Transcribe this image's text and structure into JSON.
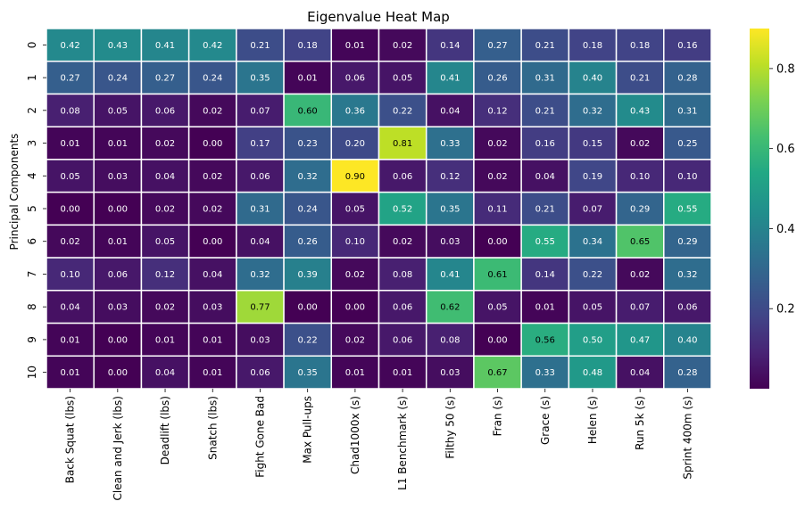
{
  "chart_data": {
    "type": "heatmap",
    "title": "Eigenvalue Heat Map",
    "ylabel": "Principal Components",
    "xlabel": "",
    "rows": [
      "0",
      "1",
      "2",
      "3",
      "4",
      "5",
      "6",
      "7",
      "8",
      "9",
      "10"
    ],
    "columns": [
      "Back Squat (lbs)",
      "Clean and Jerk (lbs)",
      "Deadlift (lbs)",
      "Snatch (lbs)",
      "Fight Gone Bad",
      "Max Pull-ups",
      "Chad1000x (s)",
      "L1 Benchmark (s)",
      "Filthy 50 (s)",
      "Fran (s)",
      "Grace (s)",
      "Helen (s)",
      "Run 5k (s)",
      "Sprint 400m (s)"
    ],
    "values": [
      [
        0.42,
        0.43,
        0.41,
        0.42,
        0.21,
        0.18,
        0.01,
        0.02,
        0.14,
        0.27,
        0.21,
        0.18,
        0.18,
        0.16
      ],
      [
        0.27,
        0.24,
        0.27,
        0.24,
        0.35,
        0.01,
        0.06,
        0.05,
        0.41,
        0.26,
        0.31,
        0.4,
        0.21,
        0.28
      ],
      [
        0.08,
        0.05,
        0.06,
        0.02,
        0.07,
        0.6,
        0.36,
        0.22,
        0.04,
        0.12,
        0.21,
        0.32,
        0.43,
        0.31
      ],
      [
        0.01,
        0.01,
        0.02,
        0.0,
        0.17,
        0.23,
        0.2,
        0.81,
        0.33,
        0.02,
        0.16,
        0.15,
        0.02,
        0.25
      ],
      [
        0.05,
        0.03,
        0.04,
        0.02,
        0.06,
        0.32,
        0.9,
        0.06,
        0.12,
        0.02,
        0.04,
        0.19,
        0.1,
        0.1
      ],
      [
        0.0,
        0.0,
        0.02,
        0.02,
        0.31,
        0.24,
        0.05,
        0.52,
        0.35,
        0.11,
        0.21,
        0.07,
        0.29,
        0.55
      ],
      [
        0.02,
        0.01,
        0.05,
        0.0,
        0.04,
        0.26,
        0.1,
        0.02,
        0.03,
        0.0,
        0.55,
        0.34,
        0.65,
        0.29
      ],
      [
        0.1,
        0.06,
        0.12,
        0.04,
        0.32,
        0.39,
        0.02,
        0.08,
        0.41,
        0.61,
        0.14,
        0.22,
        0.02,
        0.32
      ],
      [
        0.04,
        0.03,
        0.02,
        0.03,
        0.77,
        0.0,
        0.0,
        0.06,
        0.62,
        0.05,
        0.01,
        0.05,
        0.07,
        0.06
      ],
      [
        0.01,
        0.0,
        0.01,
        0.01,
        0.03,
        0.22,
        0.02,
        0.06,
        0.08,
        0.0,
        0.56,
        0.5,
        0.47,
        0.4
      ],
      [
        0.01,
        0.0,
        0.04,
        0.01,
        0.06,
        0.35,
        0.01,
        0.01,
        0.03,
        0.67,
        0.33,
        0.48,
        0.04,
        0.28
      ]
    ],
    "colormap": "viridis",
    "color_range": [
      0.0,
      0.9
    ],
    "colorbar_ticks": [
      0.2,
      0.4,
      0.6,
      0.8
    ],
    "value_format": "0.00"
  }
}
